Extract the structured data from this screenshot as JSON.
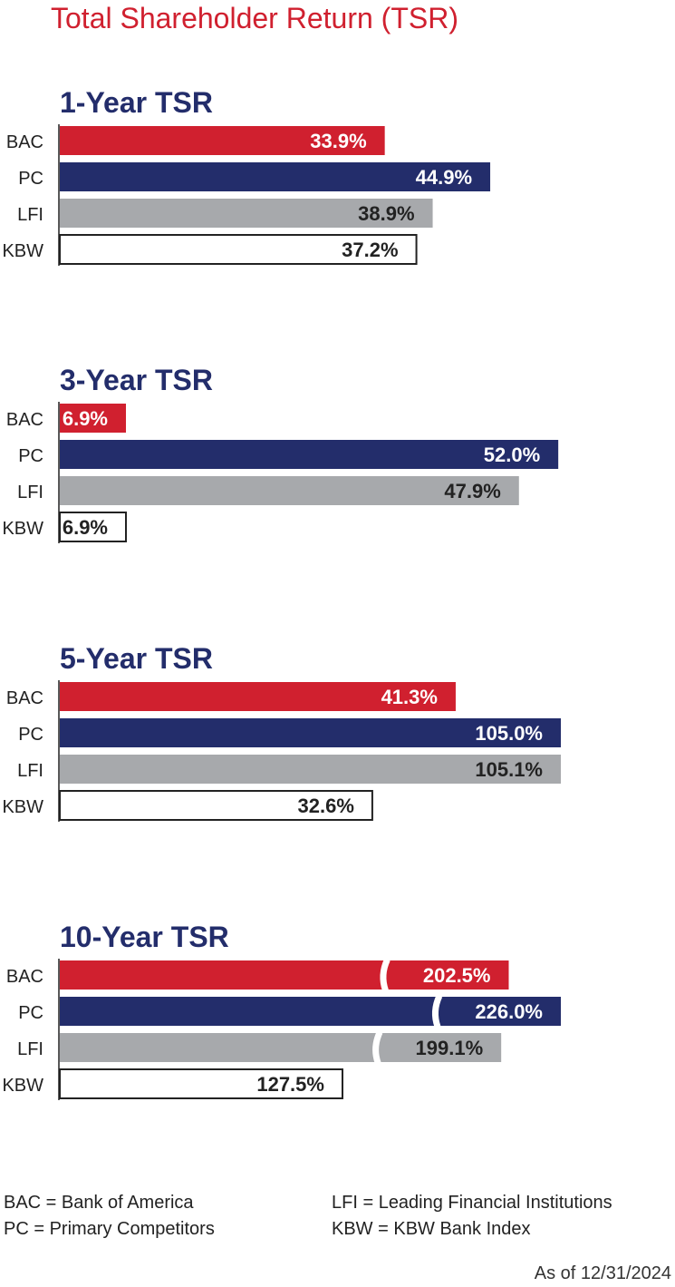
{
  "title": "Total Shareholder Return (TSR)",
  "colors": {
    "title": "#d0202f",
    "heading": "#232d6b",
    "BAC": "#d0202f",
    "PC": "#232d6b",
    "LFI": "#a7a9ac",
    "KBW": "#ffffff",
    "axis": "#222222"
  },
  "chart_data": [
    {
      "type": "bar",
      "title": "1-Year TSR",
      "categories": [
        "BAC",
        "PC",
        "LFI",
        "KBW"
      ],
      "values": [
        33.9,
        44.9,
        38.9,
        37.2
      ],
      "labels": [
        "33.9%",
        "44.9%",
        "38.9%",
        "37.2%"
      ],
      "orientation": "horizontal",
      "axis_break": false
    },
    {
      "type": "bar",
      "title": "3-Year TSR",
      "categories": [
        "BAC",
        "PC",
        "LFI",
        "KBW"
      ],
      "values": [
        6.9,
        52.0,
        47.9,
        6.9
      ],
      "labels": [
        "6.9%",
        "52.0%",
        "47.9%",
        "6.9%"
      ],
      "orientation": "horizontal",
      "axis_break": false
    },
    {
      "type": "bar",
      "title": "5-Year TSR",
      "categories": [
        "BAC",
        "PC",
        "LFI",
        "KBW"
      ],
      "values": [
        41.3,
        105.0,
        105.1,
        32.6
      ],
      "labels": [
        "41.3%",
        "105.0%",
        "105.1%",
        "32.6%"
      ],
      "orientation": "horizontal",
      "axis_break": false
    },
    {
      "type": "bar",
      "title": "10-Year TSR",
      "categories": [
        "BAC",
        "PC",
        "LFI",
        "KBW"
      ],
      "values": [
        202.5,
        226.0,
        199.1,
        127.5
      ],
      "labels": [
        "202.5%",
        "226.0%",
        "199.1%",
        "127.5%"
      ],
      "orientation": "horizontal",
      "axis_break": true,
      "broken_bars": [
        "BAC",
        "PC",
        "LFI"
      ]
    }
  ],
  "legend": {
    "items": [
      "BAC = Bank of America",
      "PC = Primary Competitors",
      "LFI = Leading Financial Institutions",
      "KBW = KBW Bank Index"
    ]
  },
  "footnote": "As of 12/31/2024"
}
